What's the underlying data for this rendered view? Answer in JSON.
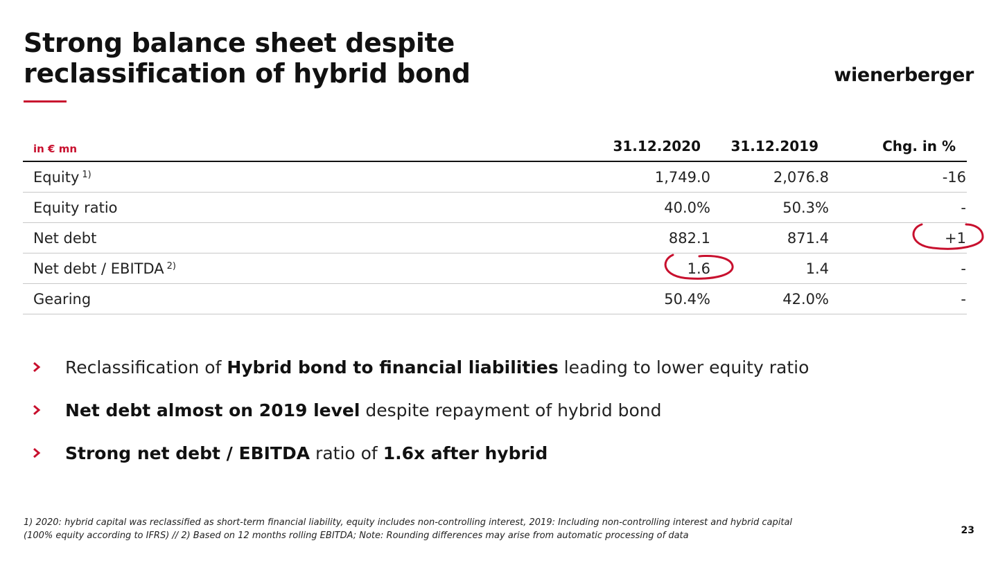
{
  "slide": {
    "title_line1": "Strong balance sheet despite",
    "title_line2": "reclassification of hybrid bond",
    "logo": "wienerberger",
    "page_number": "23",
    "accent_color": "#c8102e"
  },
  "table": {
    "unit_label": "in € mn",
    "columns": [
      "31.12.2020",
      "31.12.2019",
      "Chg. in %"
    ],
    "rows": [
      {
        "label": "Equity",
        "note": "1)",
        "v2020": "1,749.0",
        "v2019": "2,076.8",
        "chg": "-16"
      },
      {
        "label": "Equity ratio",
        "note": "",
        "v2020": "40.0%",
        "v2019": "50.3%",
        "chg": "-"
      },
      {
        "label": "Net debt",
        "note": "",
        "v2020": "882.1",
        "v2019": "871.4",
        "chg": "+1"
      },
      {
        "label": "Net debt / EBITDA",
        "note": "2)",
        "v2020": "1.6",
        "v2019": "1.4",
        "chg": "-"
      },
      {
        "label": "Gearing",
        "note": "",
        "v2020": "50.4%",
        "v2019": "42.0%",
        "chg": "-"
      }
    ],
    "highlighted_cells": [
      "Net debt / EBITDA 31.12.2020",
      "Net debt Chg. in %"
    ]
  },
  "bullets": [
    {
      "icon": "chevron-right-icon",
      "parts": [
        {
          "text": "Reclassification of ",
          "bold": false
        },
        {
          "text": "Hybrid bond to financial liabilities",
          "bold": true
        },
        {
          "text": " leading to lower equity ratio",
          "bold": false
        }
      ]
    },
    {
      "icon": "chevron-right-icon",
      "parts": [
        {
          "text": "Net debt almost on 2019 level",
          "bold": true
        },
        {
          "text": " despite repayment of hybrid bond",
          "bold": false
        }
      ]
    },
    {
      "icon": "chevron-right-icon",
      "parts": [
        {
          "text": "Strong net debt / EBITDA",
          "bold": true
        },
        {
          "text": " ratio of ",
          "bold": false
        },
        {
          "text": "1.6x after hybrid",
          "bold": true
        }
      ]
    }
  ],
  "footnote": {
    "line1": "1) 2020: hybrid capital was reclassified as short-term financial liability, equity includes non-controlling interest, 2019: Including non-controlling interest and hybrid capital",
    "line2": "(100% equity according to IFRS) // 2) Based on 12 months rolling EBITDA; Note: Rounding differences may arise from automatic processing of data"
  }
}
